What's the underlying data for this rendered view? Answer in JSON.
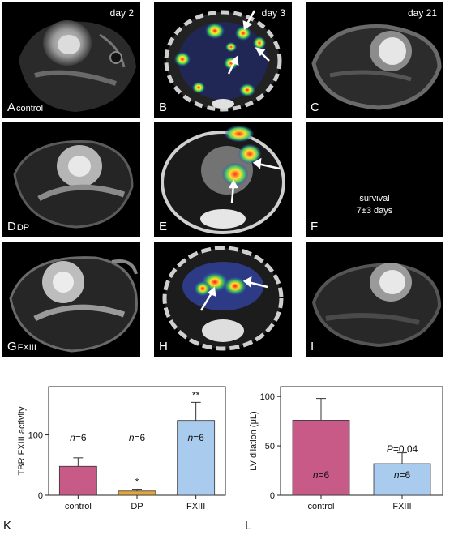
{
  "panels": {
    "A": {
      "letter": "A",
      "sub": "control",
      "day": "day 2"
    },
    "B": {
      "letter": "B",
      "sub": "",
      "day": "day 3"
    },
    "C": {
      "letter": "C",
      "sub": "",
      "day": "day 21"
    },
    "D": {
      "letter": "D",
      "sub": "DP",
      "day": ""
    },
    "E": {
      "letter": "E",
      "sub": "",
      "day": ""
    },
    "F": {
      "letter": "F",
      "sub": "",
      "day": "",
      "survival_line1": "survival",
      "survival_line2": "7±3 days"
    },
    "G": {
      "letter": "G",
      "sub": "FXIII",
      "day": ""
    },
    "H": {
      "letter": "H",
      "sub": "",
      "day": ""
    },
    "I": {
      "letter": "I",
      "sub": "",
      "day": ""
    }
  },
  "colors": {
    "control": "#c85a87",
    "DP": "#e3a63a",
    "FXIII": "#a9cbee"
  },
  "chart_data": [
    {
      "type": "bar",
      "panel_label": "K",
      "categories": [
        "control",
        "DP",
        "FXIII"
      ],
      "values": [
        48,
        7,
        124
      ],
      "errors": [
        14,
        3,
        30
      ],
      "ylabel": "TBR FXIII activity",
      "ylim": [
        0,
        180
      ],
      "yticks": [
        0,
        100
      ],
      "annotations": [
        "n=6",
        "n=6",
        "n=6"
      ],
      "significance": [
        "",
        "*",
        "**"
      ]
    },
    {
      "type": "bar",
      "panel_label": "L",
      "categories": [
        "control",
        "FXIII"
      ],
      "values": [
        76,
        32
      ],
      "errors": [
        22,
        11
      ],
      "ylabel": "LV dilation (μL)",
      "ylim": [
        0,
        110
      ],
      "yticks": [
        0,
        50,
        100
      ],
      "annotations": [
        "n=6",
        "n=6"
      ],
      "pvalue": "P=0.04"
    }
  ]
}
